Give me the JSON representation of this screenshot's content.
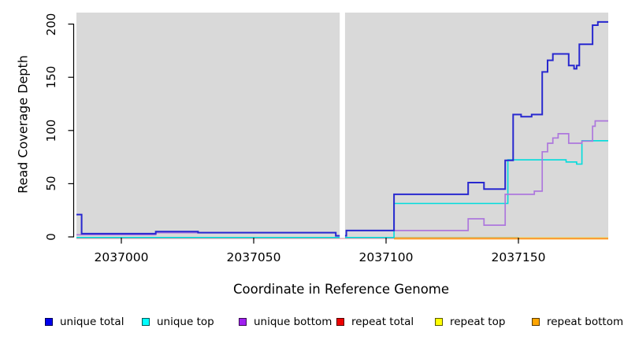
{
  "chart_data": {
    "type": "line",
    "subtype": "step-coverage",
    "title": "",
    "xlabel": "Coordinate in Reference Genome",
    "ylabel": "Read Coverage Depth",
    "x_ticks": [
      2037000,
      2037050,
      2037100,
      2037150
    ],
    "y_ticks": [
      0,
      50,
      100,
      150,
      200
    ],
    "xlim": [
      2036983,
      2037184
    ],
    "ylim": [
      0,
      210
    ],
    "plot_background": "#d9d9d9",
    "grid": "off",
    "legend_position": "bottom",
    "gap_region": {
      "x_start": 2037082.5,
      "x_end": 2037084.5
    },
    "series": [
      {
        "name": "repeat top",
        "color": "#e6e645",
        "width": 1.4,
        "zero_offset": 1.2,
        "points": [
          [
            2036983,
            0
          ]
        ]
      },
      {
        "name": "repeat total",
        "color": "#f08090",
        "width": 1.4,
        "zero_offset": 1.8,
        "points": [
          [
            2036983,
            0
          ]
        ]
      },
      {
        "name": "repeat bottom",
        "color": "#ff9e20",
        "width": 1.8,
        "zero_offset": 2.4,
        "points": [
          [
            2037013,
            0
          ],
          [
            2037029,
            null
          ],
          [
            2037103,
            0
          ]
        ]
      },
      {
        "name": "unique top",
        "color": "#00dcdc",
        "width": 1.6,
        "zero_offset": 0.8,
        "points": [
          [
            2036983,
            0
          ],
          [
            2037103,
            32
          ],
          [
            2037146,
            73
          ],
          [
            2037168,
            71
          ],
          [
            2037172,
            69
          ],
          [
            2037174,
            91
          ]
        ]
      },
      {
        "name": "unique bottom",
        "color": "#ad77dd",
        "width": 1.7,
        "zero_offset": 0,
        "points": [
          [
            2036983,
            2
          ],
          [
            2037013,
            4
          ],
          [
            2037081,
            1
          ],
          [
            2037085,
            6
          ],
          [
            2037131,
            17
          ],
          [
            2037137,
            11
          ],
          [
            2037145,
            40
          ],
          [
            2037156,
            43
          ],
          [
            2037159,
            80
          ],
          [
            2037161,
            88
          ],
          [
            2037163,
            93
          ],
          [
            2037165,
            97
          ],
          [
            2037169,
            88
          ],
          [
            2037174,
            90
          ],
          [
            2037178,
            104
          ],
          [
            2037179,
            109
          ]
        ]
      },
      {
        "name": "unique total",
        "color": "#2828cf",
        "width": 2.0,
        "zero_offset": 0,
        "points": [
          [
            2036983,
            21
          ],
          [
            2036985,
            3
          ],
          [
            2037013,
            5
          ],
          [
            2037029,
            4
          ],
          [
            2037081,
            1
          ],
          [
            2037085,
            6
          ],
          [
            2037103,
            40
          ],
          [
            2037131,
            51
          ],
          [
            2037137,
            45
          ],
          [
            2037145,
            72
          ],
          [
            2037148,
            115
          ],
          [
            2037151,
            113
          ],
          [
            2037155,
            115
          ],
          [
            2037159,
            155
          ],
          [
            2037161,
            166
          ],
          [
            2037163,
            172
          ],
          [
            2037169,
            161
          ],
          [
            2037171,
            158
          ],
          [
            2037172,
            161
          ],
          [
            2037173,
            181
          ],
          [
            2037178,
            199
          ],
          [
            2037180,
            202
          ]
        ]
      }
    ],
    "legend": [
      {
        "label": "unique total",
        "color": "#0000ee"
      },
      {
        "label": "unique top",
        "color": "#00ffff"
      },
      {
        "label": "unique bottom",
        "color": "#a020f0"
      },
      {
        "label": "repeat total",
        "color": "#ee0000"
      },
      {
        "label": "repeat top",
        "color": "#ffff00"
      },
      {
        "label": "repeat bottom",
        "color": "#ffa500"
      }
    ]
  }
}
